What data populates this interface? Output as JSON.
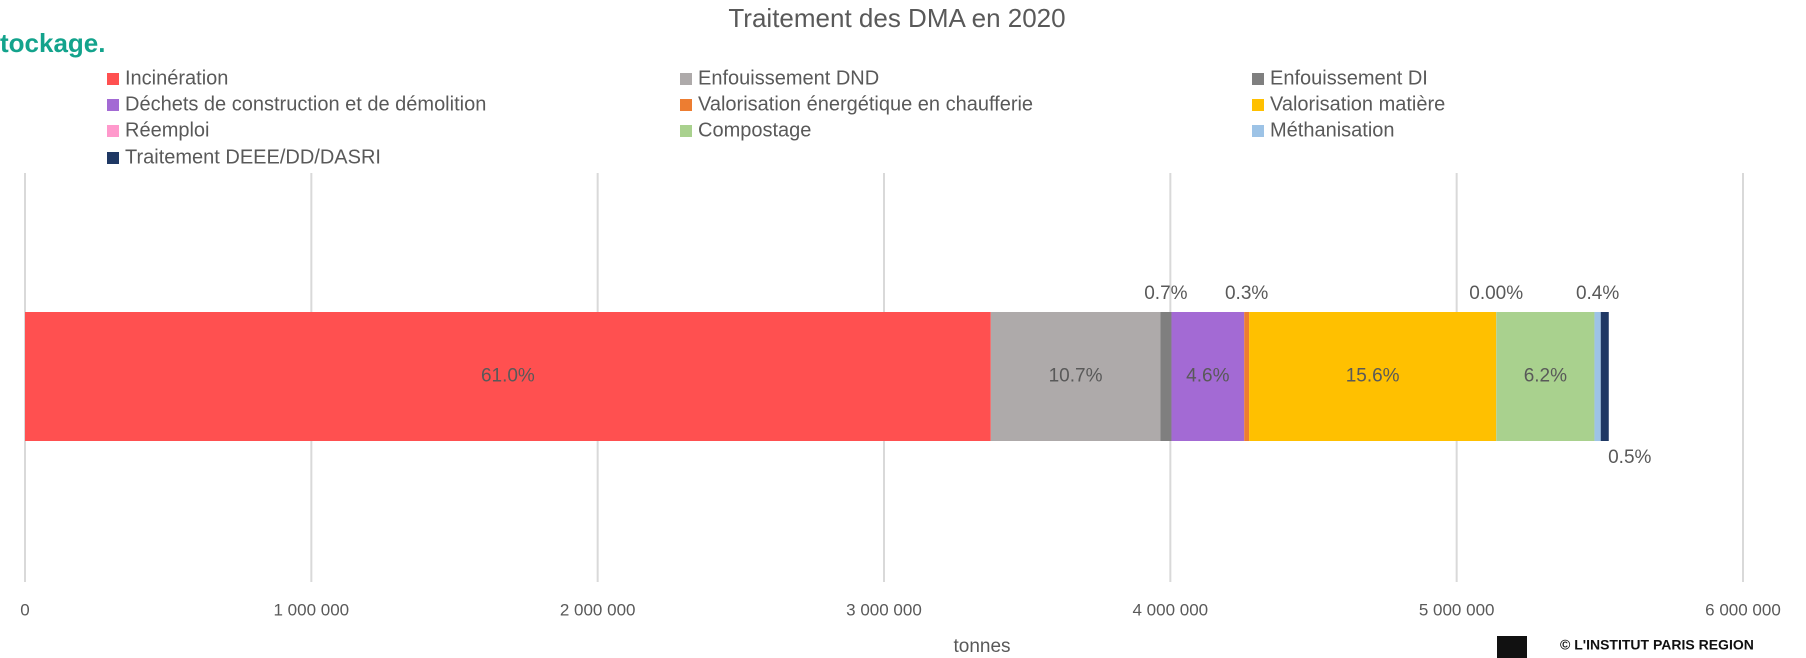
{
  "page_heading": "tockage.",
  "footer": "© L'INSTITUT PARIS REGION",
  "chart_data": {
    "type": "stacked_bar_horizontal",
    "title": "Traitement des DMA en 2020",
    "xlabel": "tonnes",
    "categories": [
      null
    ],
    "series": [
      {
        "name": "Incinération",
        "color": "#ff5050",
        "values": [
          3373000
        ],
        "value_labels": [
          "61.0%"
        ]
      },
      {
        "name": "Enfouissement DND",
        "color": "#aeaaaa",
        "values": [
          592000
        ],
        "value_labels": [
          "10.7%"
        ]
      },
      {
        "name": "Enfouissement DI",
        "color": "#7f7f7f",
        "values": [
          39000
        ],
        "value_labels": [
          "0.7%"
        ]
      },
      {
        "name": "Déchets de construction et de démolition",
        "color": "#a36ad4",
        "values": [
          254000
        ],
        "value_labels": [
          "4.6%"
        ]
      },
      {
        "name": "Valorisation énergétique en chaufferie",
        "color": "#ed7d31",
        "values": [
          17000
        ],
        "value_labels": [
          "0.3%"
        ]
      },
      {
        "name": "Valorisation matière",
        "color": "#ffc000",
        "values": [
          863000
        ],
        "value_labels": [
          "15.6%"
        ]
      },
      {
        "name": "Réemploi",
        "color": "#ff99cc",
        "values": [
          200
        ],
        "value_labels": [
          "0.00%"
        ]
      },
      {
        "name": "Compostage",
        "color": "#a9d18e",
        "values": [
          343000
        ],
        "value_labels": [
          "6.2%"
        ]
      },
      {
        "name": "Méthanisation",
        "color": "#9dc3e6",
        "values": [
          22000
        ],
        "value_labels": [
          "0.4%"
        ]
      },
      {
        "name": "Traitement DEEE/DD/DASRI",
        "color": "#1f3864",
        "values": [
          28000
        ],
        "value_labels": [
          "0.5%"
        ]
      }
    ],
    "xlim": [
      0,
      6000000
    ],
    "xticks": [
      0,
      {
        "value": 1000000,
        "label": "1 000 000"
      },
      {
        "value": 2000000,
        "label": "2 000 000"
      },
      {
        "value": 3000000,
        "label": "3 000 000"
      },
      {
        "value": 4000000,
        "label": "4 000 000"
      },
      {
        "value": 5000000,
        "label": "5 000 000"
      },
      {
        "value": 6000000,
        "label": "6 000 000"
      }
    ],
    "grid": true,
    "legend": "top"
  }
}
